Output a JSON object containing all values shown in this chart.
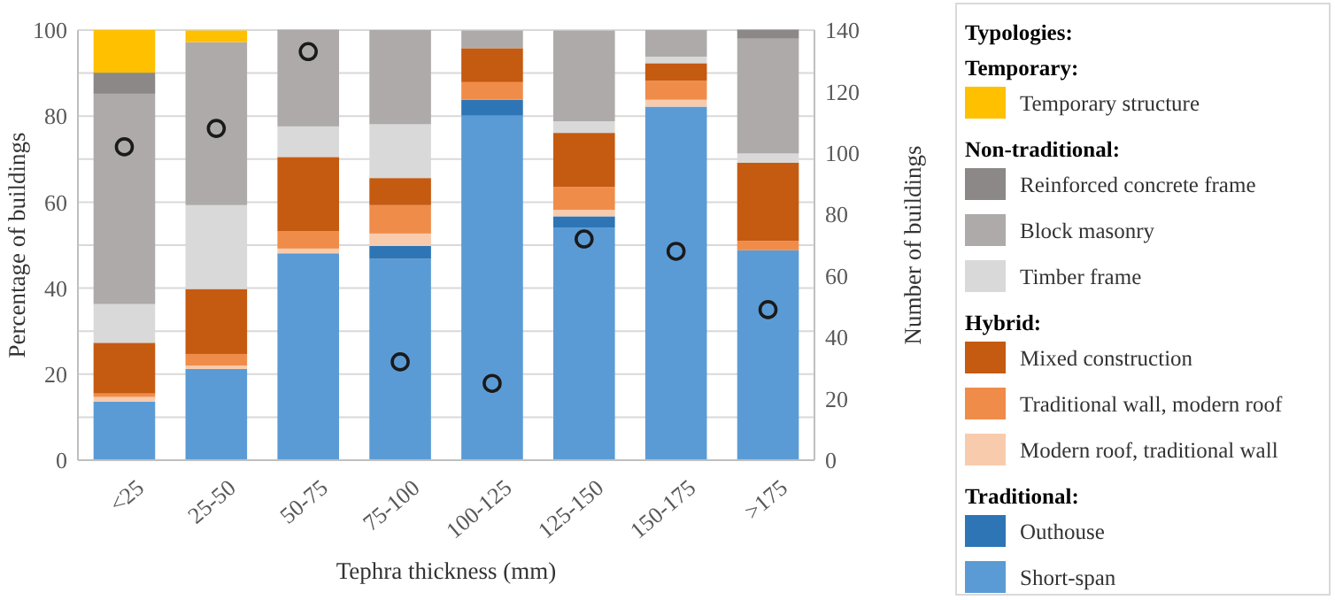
{
  "chart_data": {
    "type": "bar",
    "stacked": true,
    "xlabel": "Tephra thickness (mm)",
    "ylabel": "Percentage of buildings",
    "y2label": "Number of buildings",
    "legend_title": "Typologies:",
    "legend": "right",
    "grid": "y",
    "categories": [
      "<25",
      "25-50",
      "50-75",
      "75-100",
      "100-125",
      "125-150",
      "150-175",
      ">175"
    ],
    "ylim": [
      0,
      100
    ],
    "yticks": [
      0,
      {
        "value": 10,
        "label": null
      },
      20,
      {
        "value": 30,
        "label": null
      },
      40,
      {
        "value": 50,
        "label": null
      },
      60,
      {
        "value": 70,
        "label": null
      },
      80,
      {
        "value": 90,
        "label": null
      },
      100
    ],
    "y2lim": [
      0,
      140
    ],
    "y2ticks": [
      0,
      20,
      40,
      60,
      80,
      100,
      120,
      140
    ],
    "annotations": [
      "Temporary:",
      "Non-traditional:",
      "Hybrid:",
      "Traditional:"
    ],
    "series": [
      {
        "name": "Short-span",
        "color": "#5b9bd5",
        "values": [
          13.6,
          21.2,
          48.1,
          46.8,
          80.1,
          54.1,
          82.2,
          48.8
        ]
      },
      {
        "name": "Outhouse",
        "color": "#2e75b6",
        "values": [
          0,
          0,
          0,
          3.0,
          3.7,
          2.6,
          0,
          0
        ]
      },
      {
        "name": "Modern roof, traditional wall",
        "color": "#f8cbad",
        "values": [
          1.1,
          0.8,
          1.1,
          2.9,
          0,
          1.5,
          1.6,
          0
        ]
      },
      {
        "name": "Traditional wall, modern roof",
        "color": "#f08c4a",
        "values": [
          0.8,
          2.7,
          4.0,
          6.6,
          4.1,
          5.3,
          4.4,
          2.2
        ]
      },
      {
        "name": "Mixed construction",
        "color": "#c55a11",
        "values": [
          11.8,
          15.1,
          17.3,
          6.3,
          7.9,
          12.6,
          4.1,
          18.2
        ]
      },
      {
        "name": "Timber frame",
        "color": "#d9d9d9",
        "values": [
          9.0,
          19.5,
          7.1,
          12.5,
          0,
          2.7,
          1.5,
          2.1
        ]
      },
      {
        "name": "Block masonry",
        "color": "#aeaaaa",
        "values": [
          48.9,
          37.9,
          22.5,
          21.9,
          4.1,
          21.1,
          6.2,
          26.7
        ]
      },
      {
        "name": "Reinforced concrete frame",
        "color": "#8c8888",
        "values": [
          4.9,
          0,
          0,
          0,
          0,
          0,
          0,
          2.1
        ]
      },
      {
        "name": "Temporary structure",
        "color": "#ffc000",
        "values": [
          9.9,
          2.7,
          0,
          0,
          0,
          0,
          0,
          0
        ]
      },
      {
        "type": "scatter",
        "axis": "y2",
        "marker": "circle",
        "color": "#1a1a1a",
        "x": [
          "<25",
          "25-50",
          "50-75",
          "75-100",
          "100-125",
          "125-150",
          "150-175",
          ">175"
        ],
        "values": [
          102,
          108,
          133,
          32,
          25,
          72,
          68,
          49
        ]
      }
    ]
  }
}
